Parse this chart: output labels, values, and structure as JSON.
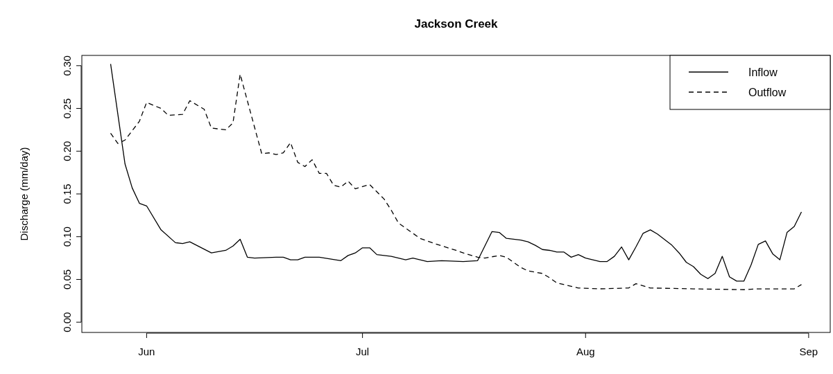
{
  "chart_data": {
    "type": "line",
    "title": "Jackson Creek",
    "ylabel": "Discharge (mm/day)",
    "xlim": [
      "--05-23",
      "--09-04"
    ],
    "ylim": [
      -0.012,
      0.312
    ],
    "xticks": [
      {
        "value": "--06-01",
        "label": "Jun"
      },
      {
        "value": "--07-01",
        "label": "Jul"
      },
      {
        "value": "--08-01",
        "label": "Aug"
      },
      {
        "value": "--09-01",
        "label": "Sep"
      }
    ],
    "yticks": [
      {
        "value": 0,
        "label": "0.00"
      },
      {
        "value": 0.05,
        "label": "0.05"
      },
      {
        "value": 0.1,
        "label": "0.10"
      },
      {
        "value": 0.15,
        "label": "0.15"
      },
      {
        "value": 0.2,
        "label": "0.20"
      },
      {
        "value": 0.25,
        "label": "0.25"
      },
      {
        "value": 0.3,
        "label": "0.30"
      }
    ],
    "legend": "top right",
    "grid": false,
    "marker": "none",
    "series": [
      {
        "name": "Inflow",
        "color": "#000000",
        "line_style": "solid",
        "x": [
          "--05-27",
          "--05-29",
          "--05-30",
          "--05-31",
          "--06-01",
          "--06-03",
          "--06-05",
          "--06-06",
          "--06-07",
          "--06-10",
          "--06-12",
          "--06-13",
          "--06-14",
          "--06-15",
          "--06-16",
          "--06-19",
          "--06-20",
          "--06-21",
          "--06-22",
          "--06-23",
          "--06-25",
          "--06-28",
          "--06-29",
          "--06-30",
          "--07-01",
          "--07-02",
          "--07-03",
          "--07-05",
          "--07-07",
          "--07-08",
          "--07-10",
          "--07-12",
          "--07-15",
          "--07-17",
          "--07-18",
          "--07-19",
          "--07-20",
          "--07-21",
          "--07-23",
          "--07-24",
          "--07-25",
          "--07-26",
          "--07-27",
          "--07-28",
          "--07-29",
          "--07-30",
          "--07-31",
          "--08-01",
          "--08-02",
          "--08-03",
          "--08-04",
          "--08-05",
          "--08-06",
          "--08-07",
          "--08-08",
          "--08-09",
          "--08-10",
          "--08-11",
          "--08-13",
          "--08-14",
          "--08-15",
          "--08-16",
          "--08-17",
          "--08-18",
          "--08-19",
          "--08-20",
          "--08-21",
          "--08-22",
          "--08-23",
          "--08-24",
          "--08-25",
          "--08-26",
          "--08-27",
          "--08-28",
          "--08-29",
          "--08-30",
          "--08-31"
        ],
        "values": [
          0.302,
          0.185,
          0.157,
          0.139,
          0.136,
          0.108,
          0.093,
          0.092,
          0.094,
          0.081,
          0.084,
          0.089,
          0.097,
          0.076,
          0.075,
          0.076,
          0.076,
          0.073,
          0.073,
          0.076,
          0.076,
          0.072,
          0.078,
          0.081,
          0.087,
          0.087,
          0.079,
          0.077,
          0.073,
          0.075,
          0.071,
          0.072,
          0.071,
          0.072,
          0.089,
          0.106,
          0.105,
          0.098,
          0.096,
          0.094,
          0.09,
          0.085,
          0.084,
          0.082,
          0.082,
          0.076,
          0.079,
          0.075,
          0.073,
          0.071,
          0.071,
          0.077,
          0.088,
          0.073,
          0.088,
          0.104,
          0.108,
          0.103,
          0.09,
          0.081,
          0.07,
          0.065,
          0.056,
          0.051,
          0.057,
          0.077,
          0.053,
          0.048,
          0.048,
          0.067,
          0.091,
          0.095,
          0.08,
          0.073,
          0.105,
          0.112,
          0.129
        ]
      },
      {
        "name": "Outflow",
        "color": "#000000",
        "line_style": "dashed",
        "x": [
          "--05-27",
          "--05-28",
          "--05-29",
          "--05-31",
          "--06-01",
          "--06-03",
          "--06-04",
          "--06-06",
          "--06-07",
          "--06-09",
          "--06-10",
          "--06-12",
          "--06-13",
          "--06-14",
          "--06-17",
          "--06-18",
          "--06-19",
          "--06-20",
          "--06-21",
          "--06-22",
          "--06-23",
          "--06-24",
          "--06-25",
          "--06-26",
          "--06-27",
          "--06-28",
          "--06-29",
          "--06-30",
          "--07-02",
          "--07-04",
          "--07-05",
          "--07-06",
          "--07-07",
          "--07-09",
          "--07-11",
          "--07-14",
          "--07-15",
          "--07-17",
          "--07-18",
          "--07-20",
          "--07-21",
          "--07-23",
          "--07-24",
          "--07-26",
          "--07-27",
          "--07-28",
          "--07-30",
          "--07-31",
          "--08-03",
          "--08-07",
          "--08-08",
          "--08-10",
          "--08-16",
          "--08-23",
          "--08-25",
          "--08-30",
          "--08-31"
        ],
        "values": [
          0.221,
          0.209,
          0.213,
          0.235,
          0.257,
          0.25,
          0.242,
          0.243,
          0.259,
          0.249,
          0.227,
          0.225,
          0.233,
          0.29,
          0.197,
          0.198,
          0.196,
          0.198,
          0.21,
          0.187,
          0.182,
          0.19,
          0.174,
          0.174,
          0.16,
          0.158,
          0.165,
          0.156,
          0.161,
          0.144,
          0.131,
          0.116,
          0.11,
          0.098,
          0.092,
          0.084,
          0.081,
          0.076,
          0.075,
          0.078,
          0.076,
          0.064,
          0.06,
          0.057,
          0.052,
          0.046,
          0.042,
          0.04,
          0.039,
          0.04,
          0.045,
          0.04,
          0.039,
          0.038,
          0.039,
          0.039,
          0.044
        ]
      }
    ]
  }
}
